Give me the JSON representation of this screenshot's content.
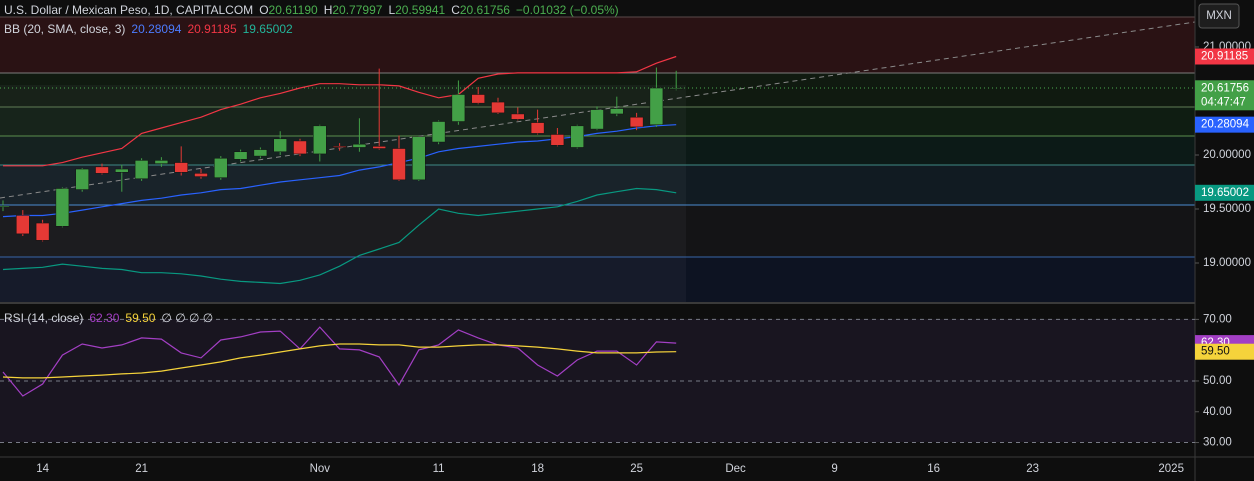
{
  "header": {
    "symbol": "U.S. Dollar / Mexican Peso, 1D, CAPITALCOM",
    "ohlc": [
      {
        "label": "O",
        "value": "20.61190"
      },
      {
        "label": "H",
        "value": "20.77997"
      },
      {
        "label": "L",
        "value": "20.59941"
      },
      {
        "label": "C",
        "value": "20.61756"
      }
    ],
    "change": "−0.01032 (−0.05%)",
    "currency": "MXN",
    "countdown": "04:47:47"
  },
  "chart_data": [
    {
      "type": "candlestick",
      "indicator": "BB (20, SMA, close, 3)",
      "up_color": "#43a047",
      "down_color": "#e53935",
      "categories": [
        null,
        null,
        "14",
        null,
        null,
        null,
        null,
        "21",
        null,
        null,
        null,
        null,
        null,
        null,
        null,
        null,
        "Nov",
        null,
        null,
        null,
        null,
        null,
        "11",
        null,
        null,
        null,
        null,
        "18",
        null,
        null,
        null,
        null,
        "25",
        null,
        null,
        null,
        null,
        "Dec",
        null,
        null,
        null,
        null,
        "9",
        null,
        null,
        null,
        null,
        "16",
        null,
        null,
        null,
        null,
        "23",
        null,
        null,
        null,
        null,
        null,
        null,
        "2025"
      ],
      "open": [
        19.52,
        19.44,
        19.37,
        19.34,
        19.68,
        19.89,
        19.84,
        19.78,
        19.92,
        19.93,
        19.83,
        19.79,
        19.96,
        19.99,
        20.03,
        20.13,
        20.01,
        20.08,
        20.07,
        20.08,
        20.06,
        19.77,
        20.12,
        20.31,
        20.56,
        20.49,
        20.38,
        20.3,
        20.19,
        20.07,
        20.24,
        20.38,
        20.35,
        20.28,
        20.6119,
        null,
        null,
        null,
        null,
        null,
        null,
        null,
        null,
        null,
        null,
        null,
        null,
        null,
        null,
        null,
        null,
        null,
        null,
        null,
        null,
        null,
        null,
        null,
        null,
        null
      ],
      "high": [
        19.58,
        19.49,
        19.4,
        19.7,
        19.88,
        19.92,
        19.91,
        19.97,
        19.98,
        20.08,
        19.87,
        19.99,
        20.05,
        20.07,
        20.22,
        20.15,
        20.28,
        20.11,
        20.34,
        20.8,
        20.18,
        20.17,
        20.32,
        20.69,
        20.63,
        20.53,
        20.44,
        20.42,
        20.25,
        20.28,
        20.45,
        20.54,
        20.39,
        20.81,
        20.77997,
        null,
        null,
        null,
        null,
        null,
        null,
        null,
        null,
        null,
        null,
        null,
        null,
        null,
        null,
        null,
        null,
        null,
        null,
        null,
        null,
        null,
        null,
        null,
        null,
        null
      ],
      "low": [
        19.48,
        19.25,
        19.2,
        19.33,
        19.66,
        19.82,
        19.66,
        19.76,
        19.89,
        19.81,
        19.78,
        19.77,
        19.94,
        19.97,
        20.0,
        19.99,
        19.94,
        20.04,
        20.03,
        20.05,
        19.76,
        19.76,
        20.1,
        20.28,
        20.47,
        20.38,
        20.32,
        20.19,
        20.08,
        20.06,
        20.23,
        20.36,
        20.23,
        20.26,
        20.59941,
        null,
        null,
        null,
        null,
        null,
        null,
        null,
        null,
        null,
        null,
        null,
        null,
        null,
        null,
        null,
        null,
        null,
        null,
        null,
        null,
        null,
        null,
        null,
        null,
        null
      ],
      "close": [
        19.53,
        19.27,
        19.21,
        19.69,
        19.87,
        19.83,
        19.87,
        19.95,
        19.95,
        19.84,
        19.8,
        19.97,
        20.03,
        20.05,
        20.15,
        20.01,
        20.27,
        20.07,
        20.1,
        20.06,
        19.77,
        20.17,
        20.31,
        20.56,
        20.48,
        20.39,
        20.33,
        20.2,
        20.09,
        20.27,
        20.42,
        20.43,
        20.26,
        20.62,
        20.61756,
        null,
        null,
        null,
        null,
        null,
        null,
        null,
        null,
        null,
        null,
        null,
        null,
        null,
        null,
        null,
        null,
        null,
        null,
        null,
        null,
        null,
        null,
        null,
        null,
        null
      ],
      "series": [
        {
          "color": "#2962ff",
          "values": [
            19.43,
            19.44,
            19.44,
            19.46,
            19.49,
            19.52,
            19.55,
            19.58,
            19.6,
            19.63,
            19.65,
            19.68,
            19.69,
            19.72,
            19.75,
            19.77,
            19.79,
            19.81,
            19.86,
            19.89,
            19.93,
            19.97,
            20.03,
            20.06,
            20.08,
            20.1,
            20.12,
            20.13,
            20.15,
            20.17,
            20.2,
            20.22,
            20.25,
            20.27,
            20.28094,
            null,
            null,
            null,
            null,
            null,
            null,
            null,
            null,
            null,
            null,
            null,
            null,
            null,
            null,
            null,
            null,
            null,
            null,
            null,
            null,
            null,
            null,
            null,
            null,
            null
          ]
        },
        {
          "color": "#f23645",
          "values": [
            19.9,
            19.9,
            19.9,
            19.93,
            19.98,
            20.02,
            20.06,
            20.2,
            20.25,
            20.3,
            20.35,
            20.42,
            20.47,
            20.53,
            20.57,
            20.62,
            20.66,
            20.66,
            20.65,
            20.65,
            20.64,
            20.58,
            20.53,
            20.56,
            20.71,
            20.75,
            20.76,
            20.76,
            20.76,
            20.76,
            20.76,
            20.76,
            20.77,
            20.85,
            20.91185,
            null,
            null,
            null,
            null,
            null,
            null,
            null,
            null,
            null,
            null,
            null,
            null,
            null,
            null,
            null,
            null,
            null,
            null,
            null,
            null,
            null,
            null,
            null,
            null,
            null
          ]
        },
        {
          "color": "#089981",
          "values": [
            18.94,
            18.95,
            18.96,
            18.99,
            18.97,
            18.95,
            18.94,
            18.91,
            18.91,
            18.9,
            18.88,
            18.85,
            18.83,
            18.82,
            18.81,
            18.84,
            18.89,
            18.97,
            19.07,
            19.13,
            19.19,
            19.35,
            19.5,
            19.46,
            19.44,
            19.46,
            19.48,
            19.5,
            19.52,
            19.57,
            19.63,
            19.66,
            19.69,
            19.68,
            19.65002,
            null,
            null,
            null,
            null,
            null,
            null,
            null,
            null,
            null,
            null,
            null,
            null,
            null,
            null,
            null,
            null,
            null,
            null,
            null,
            null,
            null,
            null,
            null,
            null,
            null
          ]
        }
      ],
      "ylim": [
        18.639,
        21.435
      ],
      "yticks": [
        {
          "value": 21,
          "label": "21.00000"
        },
        {
          "value": 20,
          "label": "20.00000"
        },
        {
          "value": 19.5,
          "label": "19.50000"
        },
        {
          "value": 19,
          "label": "19.00000"
        }
      ]
    },
    {
      "type": "line",
      "indicator": "RSI (14, close)",
      "legend_extra": "∅ ∅ ∅ ∅",
      "series": [
        {
          "color": "#a33fc4",
          "values": [
            52.9,
            45.1,
            49.0,
            58.4,
            62.0,
            60.7,
            61.7,
            64.0,
            63.6,
            59.1,
            57.5,
            63.3,
            64.3,
            65.9,
            66.2,
            60.4,
            67.5,
            60.4,
            60.1,
            57.8,
            48.7,
            60.1,
            61.7,
            66.6,
            64.0,
            61.7,
            60.7,
            55.2,
            51.6,
            56.8,
            59.7,
            59.7,
            55.2,
            62.7,
            62.3,
            null,
            null,
            null,
            null,
            null,
            null,
            null,
            null,
            null,
            null,
            null,
            null,
            null,
            null,
            null,
            null,
            null,
            null,
            null,
            null,
            null,
            null,
            null,
            null,
            null
          ],
          "value_labels": [
            null,
            null,
            null,
            null,
            null,
            null,
            null,
            null,
            null,
            null,
            null,
            null,
            null,
            null,
            null,
            null,
            null,
            null,
            null,
            null,
            null,
            null,
            null,
            null,
            null,
            null,
            null,
            null,
            null,
            null,
            null,
            null,
            null,
            null,
            "62.30",
            null,
            null,
            null,
            null,
            null,
            null,
            null,
            null,
            null,
            null,
            null,
            null,
            null,
            null,
            null,
            null,
            null,
            null,
            null,
            null,
            null,
            null,
            null,
            null,
            null
          ]
        },
        {
          "color": "#f5d33b",
          "values": [
            51.3,
            51.0,
            51.0,
            51.3,
            51.6,
            51.9,
            52.3,
            52.6,
            53.2,
            54.2,
            55.2,
            56.2,
            57.5,
            58.4,
            59.4,
            60.4,
            61.4,
            62.0,
            62.0,
            61.7,
            61.7,
            61.0,
            61.0,
            61.4,
            61.7,
            61.7,
            61.4,
            61.0,
            60.4,
            59.7,
            59.1,
            59.1,
            59.1,
            59.4,
            59.5,
            null,
            null,
            null,
            null,
            null,
            null,
            null,
            null,
            null,
            null,
            null,
            null,
            null,
            null,
            null,
            null,
            null,
            null,
            null,
            null,
            null,
            null,
            null,
            null,
            null
          ],
          "value_labels": [
            null,
            null,
            null,
            null,
            null,
            null,
            null,
            null,
            null,
            null,
            null,
            null,
            null,
            null,
            null,
            null,
            null,
            null,
            null,
            null,
            null,
            null,
            null,
            null,
            null,
            null,
            null,
            null,
            null,
            null,
            null,
            null,
            null,
            null,
            "59.50",
            null,
            null,
            null,
            null,
            null,
            null,
            null,
            null,
            null,
            null,
            null,
            null,
            null,
            null,
            null,
            null,
            null,
            null,
            null,
            null,
            null,
            null,
            null,
            null,
            null
          ]
        }
      ],
      "ylim": [
        25.3,
        75
      ],
      "yticks": [
        {
          "value": 70,
          "label": "70.00"
        },
        {
          "value": 50,
          "label": "50.00"
        },
        {
          "value": 40,
          "label": "40.00"
        },
        {
          "value": 30,
          "label": "30.00"
        }
      ],
      "bands": [
        70,
        50,
        30
      ]
    }
  ]
}
